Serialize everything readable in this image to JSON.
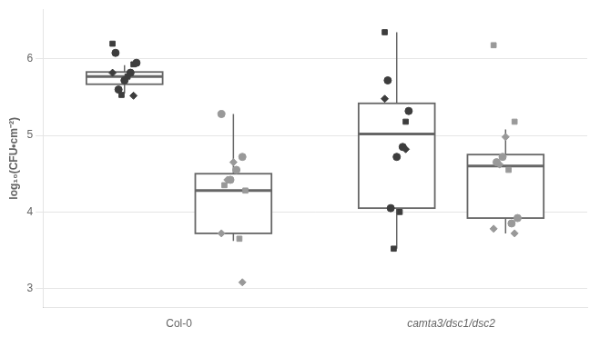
{
  "chart_data": {
    "type": "box",
    "ylabel": "log₁₀(CFU•cm⁻²)",
    "categories": [
      "Col-0",
      "camta3/dsc1/dsc2"
    ],
    "ylim": [
      2.75,
      6.65
    ],
    "yticks": [
      3,
      4,
      5,
      6
    ],
    "grid": true,
    "series": [
      {
        "color": "#3d3d3d",
        "values": [
          {
            "median": 5.77,
            "q1": 5.67,
            "q3": 5.83,
            "whislo": 5.55,
            "whishi": 5.92,
            "points": [
              {
                "marker": "square",
                "y": 6.2
              },
              {
                "marker": "square",
                "y": 5.93
              },
              {
                "marker": "square",
                "y": 5.77
              },
              {
                "marker": "square",
                "y": 5.53
              },
              {
                "marker": "circle",
                "y": 6.08
              },
              {
                "marker": "circle",
                "y": 5.95
              },
              {
                "marker": "circle",
                "y": 5.82
              },
              {
                "marker": "circle",
                "y": 5.72
              },
              {
                "marker": "circle",
                "y": 5.6
              },
              {
                "marker": "diamond",
                "y": 5.82
              },
              {
                "marker": "diamond",
                "y": 5.52
              }
            ]
          },
          {
            "median": 5.02,
            "q1": 4.05,
            "q3": 5.42,
            "whislo": 3.52,
            "whishi": 6.35,
            "points": [
              {
                "marker": "square",
                "y": 6.35
              },
              {
                "marker": "square",
                "y": 5.18
              },
              {
                "marker": "square",
                "y": 4.0
              },
              {
                "marker": "square",
                "y": 3.52
              },
              {
                "marker": "circle",
                "y": 5.72
              },
              {
                "marker": "circle",
                "y": 5.32
              },
              {
                "marker": "circle",
                "y": 4.85
              },
              {
                "marker": "circle",
                "y": 4.72
              },
              {
                "marker": "circle",
                "y": 4.05
              },
              {
                "marker": "diamond",
                "y": 5.48
              },
              {
                "marker": "diamond",
                "y": 4.82
              }
            ]
          }
        ]
      },
      {
        "color": "#999999",
        "values": [
          {
            "median": 4.28,
            "q1": 3.72,
            "q3": 4.5,
            "whislo": 3.62,
            "whishi": 5.28,
            "points": [
              {
                "marker": "circle",
                "y": 5.28
              },
              {
                "marker": "circle",
                "y": 4.72
              },
              {
                "marker": "circle",
                "y": 4.55
              },
              {
                "marker": "circle",
                "y": 4.42
              },
              {
                "marker": "square",
                "y": 4.35
              },
              {
                "marker": "square",
                "y": 4.28
              },
              {
                "marker": "square",
                "y": 3.65
              },
              {
                "marker": "diamond",
                "y": 4.65
              },
              {
                "marker": "diamond",
                "y": 4.42
              },
              {
                "marker": "diamond",
                "y": 3.72
              },
              {
                "marker": "diamond",
                "y": 3.08
              }
            ]
          },
          {
            "median": 4.6,
            "q1": 3.92,
            "q3": 4.75,
            "whislo": 3.72,
            "whishi": 5.08,
            "points": [
              {
                "marker": "square",
                "y": 6.18
              },
              {
                "marker": "square",
                "y": 5.18
              },
              {
                "marker": "square",
                "y": 4.55
              },
              {
                "marker": "circle",
                "y": 4.72
              },
              {
                "marker": "circle",
                "y": 4.65
              },
              {
                "marker": "circle",
                "y": 3.92
              },
              {
                "marker": "circle",
                "y": 3.85
              },
              {
                "marker": "diamond",
                "y": 4.98
              },
              {
                "marker": "diamond",
                "y": 4.62
              },
              {
                "marker": "diamond",
                "y": 3.78
              },
              {
                "marker": "diamond",
                "y": 3.72
              }
            ]
          }
        ]
      }
    ]
  }
}
